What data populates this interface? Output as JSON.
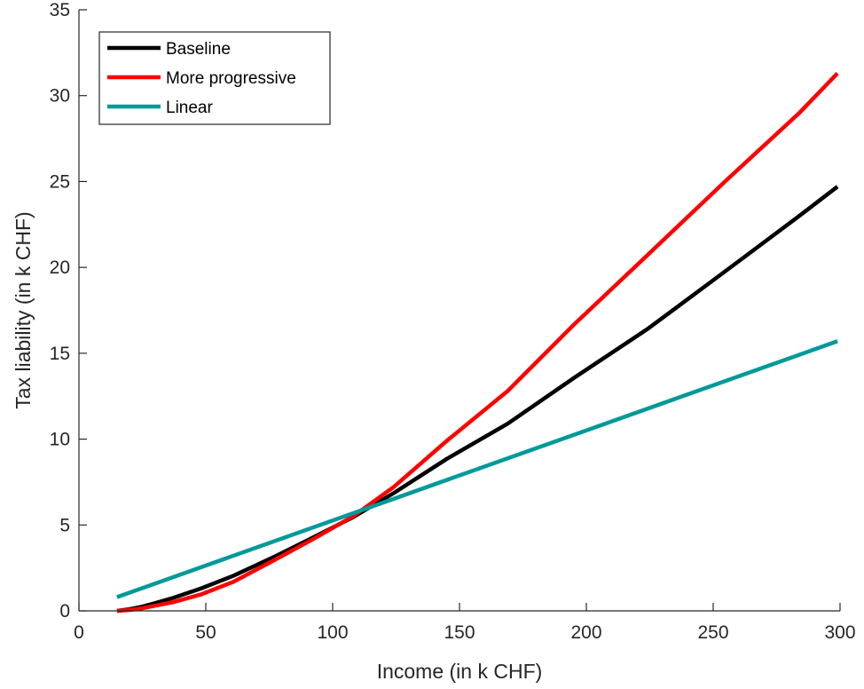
{
  "chart_data": {
    "type": "line",
    "title": "",
    "xlabel": "Income (in k CHF)",
    "ylabel": "Tax liability (in k CHF)",
    "xlim": [
      0,
      300
    ],
    "ylim": [
      0,
      35
    ],
    "xticks": [
      "0",
      "50",
      "100",
      "150",
      "200",
      "250",
      "300"
    ],
    "yticks": [
      "0",
      "5",
      "10",
      "15",
      "20",
      "25",
      "30",
      "35"
    ],
    "grid": false,
    "legend": "top-left",
    "series": [
      {
        "name": "Baseline",
        "color": "#000000",
        "x": [
          15,
          20,
          25,
          30,
          37,
          48,
          61,
          77,
          92,
          108,
          124,
          145,
          169,
          195,
          224,
          255,
          284,
          299
        ],
        "y": [
          0.0,
          0.1,
          0.25,
          0.45,
          0.75,
          1.3,
          2.05,
          3.15,
          4.25,
          5.45,
          6.85,
          8.85,
          10.9,
          13.55,
          16.4,
          19.8,
          23.0,
          24.7
        ]
      },
      {
        "name": "More progressive",
        "color": "#ff0000",
        "x": [
          15,
          20,
          25,
          30,
          37,
          48,
          61,
          77,
          92,
          108,
          124,
          145,
          169,
          195,
          224,
          255,
          284,
          299
        ],
        "y": [
          0.0,
          0.05,
          0.15,
          0.3,
          0.5,
          0.95,
          1.7,
          2.95,
          4.15,
          5.5,
          7.2,
          9.9,
          12.8,
          16.65,
          20.7,
          25.05,
          29.0,
          31.3
        ]
      },
      {
        "name": "Linear",
        "color": "#009999",
        "x": [
          15,
          299
        ],
        "y": [
          0.8,
          15.7
        ]
      }
    ]
  }
}
